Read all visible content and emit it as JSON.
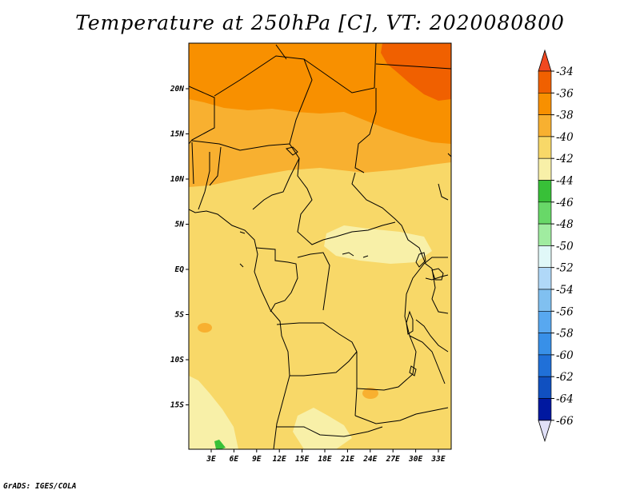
{
  "title": "Temperature at 250hPa [C], VT: 2020080800",
  "credit": "GrADS: IGES/COLA",
  "lat_labels": [
    "20N",
    "15N",
    "10N",
    "5N",
    "EQ",
    "5S",
    "10S",
    "15S"
  ],
  "lat_values": [
    20,
    15,
    10,
    5,
    0,
    -5,
    -10,
    -15
  ],
  "lon_labels": [
    "3E",
    "6E",
    "9E",
    "12E",
    "15E",
    "18E",
    "21E",
    "24E",
    "27E",
    "30E",
    "33E"
  ],
  "lon_values": [
    3,
    6,
    9,
    12,
    15,
    18,
    21,
    24,
    27,
    30,
    33
  ],
  "colorbar": {
    "labels": [
      "-34",
      "-36",
      "-38",
      "-40",
      "-42",
      "-44",
      "-46",
      "-48",
      "-50",
      "-52",
      "-54",
      "-56",
      "-58",
      "-60",
      "-62",
      "-64",
      "-66"
    ],
    "colors": [
      "#f04820",
      "#f06000",
      "#f89000",
      "#f8b030",
      "#f8d868",
      "#f8f0a8",
      "#38c038",
      "#68d868",
      "#a0eca0",
      "#e0f8f8",
      "#b0d8f8",
      "#80c0f0",
      "#58a8f0",
      "#3890e8",
      "#2070d8",
      "#1050c0",
      "#0018a0",
      "#000070",
      "#e0e0f8"
    ]
  },
  "colors": {
    "orange_dark": "#f06000",
    "orange": "#f89000",
    "orange_light": "#f8b030",
    "yellow": "#f8d868",
    "pale_yellow": "#f8f0a8",
    "green": "#38c038",
    "border": "#000000"
  }
}
